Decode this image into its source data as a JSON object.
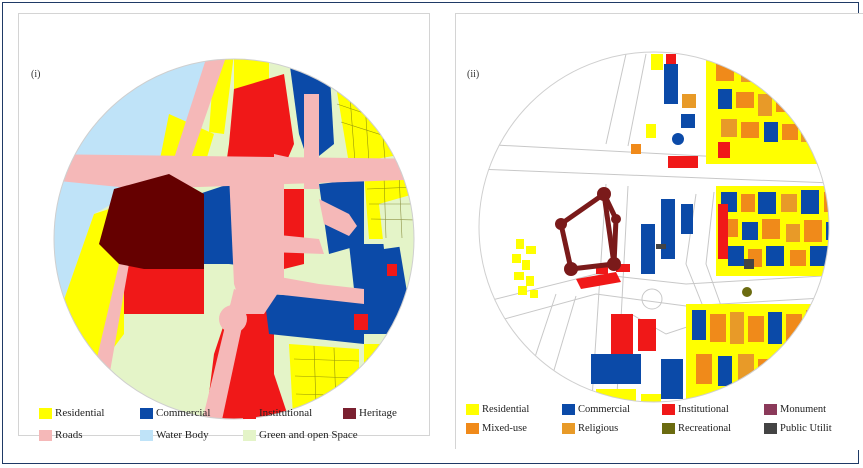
{
  "panels": [
    {
      "label": "(i)",
      "legend": [
        {
          "label": "Residential",
          "color": "#ffff00"
        },
        {
          "label": "Commercial",
          "color": "#0b4aa8"
        },
        {
          "label": "Institutional",
          "color": "#f01818"
        },
        {
          "label": "Heritage",
          "color": "#7a2030"
        },
        {
          "label": "Roads",
          "color": "#f5b8b8"
        },
        {
          "label": "Water Body",
          "color": "#bfe3f8"
        },
        {
          "label": "Green and open Space",
          "color": "#e4f4c8"
        }
      ]
    },
    {
      "label": "(ii)",
      "legend": [
        {
          "label": "Residential",
          "color": "#ffff00"
        },
        {
          "label": "Commercial",
          "color": "#0b4aa8"
        },
        {
          "label": "Institutional",
          "color": "#f01818"
        },
        {
          "label": "Monument",
          "color": "#8b3a5a"
        },
        {
          "label": "Mixed-use",
          "color": "#f08a1a"
        },
        {
          "label": "Religious",
          "color": "#e89a28"
        },
        {
          "label": "Recreational",
          "color": "#6b6b10"
        },
        {
          "label": "Public Utilit",
          "color": "#444444"
        }
      ]
    }
  ],
  "colors": {
    "heritage_dark": "#650000",
    "road": "#f5b8b8",
    "water": "#bfe3f8",
    "green": "#e4f4c8",
    "residential": "#ffff00",
    "commercial": "#0b4aa8",
    "institutional": "#f01818",
    "mixed_use": "#f08a1a",
    "monument": "#7a1a1a",
    "recreational": "#6b6b10",
    "utility": "#444444"
  }
}
